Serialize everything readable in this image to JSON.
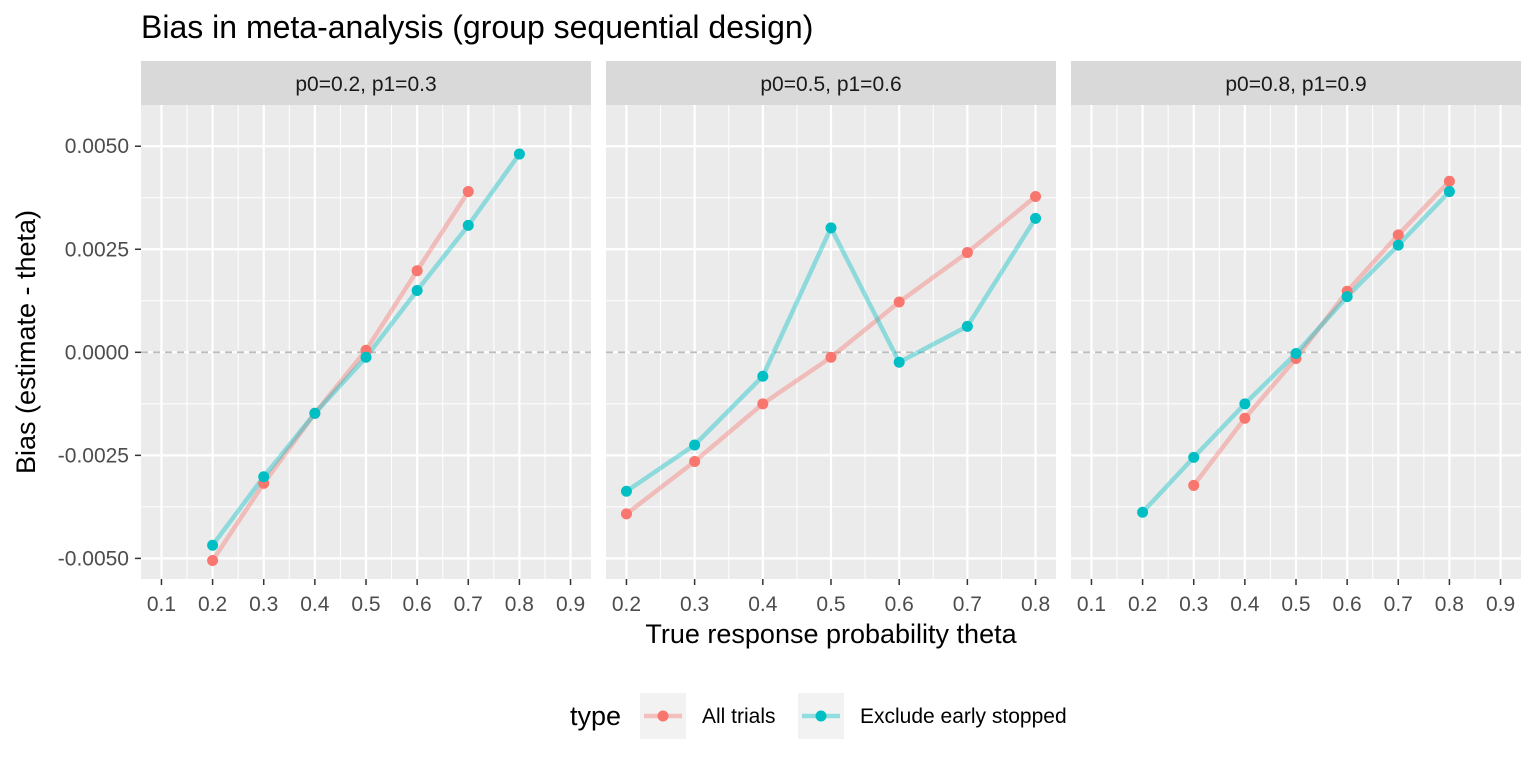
{
  "chart_data": {
    "type": "line",
    "title": "Bias in meta-analysis (group sequential design)",
    "xlabel": "True response probability theta",
    "ylabel": "Bias (estimate - theta)",
    "ylim": [
      -0.0055,
      0.006
    ],
    "y_ticks": [
      -0.005,
      -0.0025,
      0.0,
      0.0025,
      0.005
    ],
    "y_tick_labels": [
      "-0.0050",
      "-0.0025",
      "0.0000",
      "0.0025",
      "0.0050"
    ],
    "reference_line": 0,
    "grid": true,
    "legend": {
      "position": "bottom",
      "title": "type",
      "entries": [
        {
          "label": "All trials",
          "color": "#F8766D"
        },
        {
          "label": "Exclude early stopped",
          "color": "#00BFC4"
        }
      ]
    },
    "panels": [
      {
        "label": "p0=0.2, p1=0.3",
        "xlim": [
          0.06,
          0.94
        ],
        "x_ticks": [
          0.1,
          0.2,
          0.3,
          0.4,
          0.5,
          0.6,
          0.7,
          0.8,
          0.9
        ],
        "x_tick_labels": [
          "0.1",
          "0.2",
          "0.3",
          "0.4",
          "0.5",
          "0.6",
          "0.7",
          "0.8",
          "0.9"
        ],
        "series": [
          {
            "name": "All trials",
            "x": [
              0.2,
              0.3,
              0.4,
              0.5,
              0.6,
              0.7
            ],
            "y": [
              -0.00505,
              -0.00318,
              -0.00148,
              5e-05,
              0.00198,
              0.0039
            ]
          },
          {
            "name": "Exclude early stopped",
            "x": [
              0.2,
              0.3,
              0.4,
              0.5,
              0.6,
              0.7,
              0.8
            ],
            "y": [
              -0.00468,
              -0.00302,
              -0.00148,
              -0.00012,
              0.0015,
              0.00308,
              0.00481
            ]
          }
        ]
      },
      {
        "label": "p0=0.5, p1=0.6",
        "xlim": [
          0.17,
          0.83
        ],
        "x_ticks": [
          0.2,
          0.3,
          0.4,
          0.5,
          0.6,
          0.7,
          0.8
        ],
        "x_tick_labels": [
          "0.2",
          "0.3",
          "0.4",
          "0.5",
          "0.6",
          "0.7",
          "0.8"
        ],
        "series": [
          {
            "name": "All trials",
            "x": [
              0.2,
              0.3,
              0.4,
              0.5,
              0.6,
              0.7,
              0.8
            ],
            "y": [
              -0.00392,
              -0.00265,
              -0.00125,
              -0.00012,
              0.00122,
              0.00242,
              0.00378
            ]
          },
          {
            "name": "Exclude early stopped",
            "x": [
              0.2,
              0.3,
              0.4,
              0.5,
              0.6,
              0.7,
              0.8
            ],
            "y": [
              -0.00337,
              -0.00225,
              -0.00058,
              0.00302,
              -0.00024,
              0.00063,
              0.00325
            ]
          }
        ]
      },
      {
        "label": "p0=0.8, p1=0.9",
        "xlim": [
          0.06,
          0.94
        ],
        "x_ticks": [
          0.1,
          0.2,
          0.3,
          0.4,
          0.5,
          0.6,
          0.7,
          0.8,
          0.9
        ],
        "x_tick_labels": [
          "0.1",
          "0.2",
          "0.3",
          "0.4",
          "0.5",
          "0.6",
          "0.7",
          "0.8",
          "0.9"
        ],
        "series": [
          {
            "name": "All trials",
            "x": [
              0.3,
              0.4,
              0.5,
              0.6,
              0.7,
              0.8
            ],
            "y": [
              -0.00323,
              -0.0016,
              -0.00015,
              0.00148,
              0.00285,
              0.00415
            ]
          },
          {
            "name": "Exclude early stopped",
            "x": [
              0.2,
              0.3,
              0.4,
              0.5,
              0.6,
              0.7,
              0.8
            ],
            "y": [
              -0.00388,
              -0.00255,
              -0.00125,
              -3e-05,
              0.00135,
              0.0026,
              0.0039
            ]
          }
        ]
      }
    ]
  }
}
